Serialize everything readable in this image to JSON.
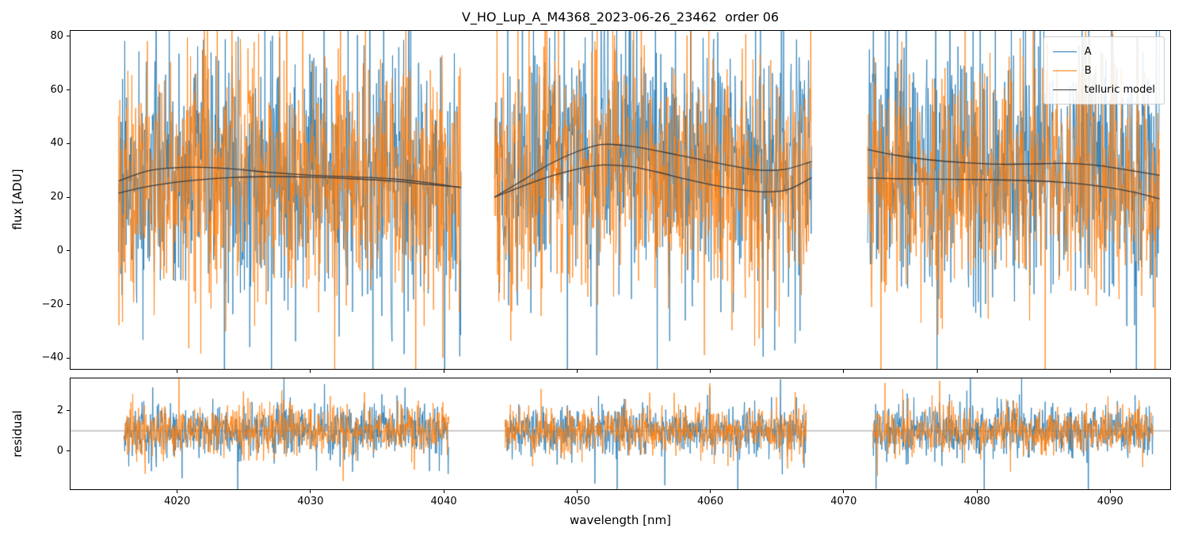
{
  "chart_data": {
    "type": "line",
    "title": "V_HO_Lup_A_M4368_2023-06-26_23462  order 06",
    "xlabel": "wavelength [nm]",
    "xlim": [
      4012,
      4094.5
    ],
    "xticks": [
      4020,
      4030,
      4040,
      4050,
      4060,
      4070,
      4080,
      4090
    ],
    "grid": false,
    "legend_position": "upper right",
    "legend": [
      {
        "label": "A",
        "color": "#1f77b4"
      },
      {
        "label": "B",
        "color": "#ff7f0e"
      },
      {
        "label": "telluric model",
        "color": "#3d3d3d"
      }
    ],
    "panels": [
      {
        "name": "flux",
        "ylabel": "flux [ADU]",
        "ylim": [
          -44,
          82
        ],
        "yticks": [
          -40,
          -20,
          0,
          20,
          40,
          60,
          80
        ],
        "segments": [
          [
            4015.6,
            4041.3
          ],
          [
            4043.8,
            4067.6
          ],
          [
            4071.8,
            4093.7
          ]
        ],
        "noise": {
          "points_per_nm": 30,
          "series": [
            {
              "name": "A",
              "color": "#1f77b4",
              "std": [
                21,
                22,
                24
              ],
              "spike_prob": 0.09,
              "spike_mult": 2.1
            },
            {
              "name": "B",
              "color": "#ff7f0e",
              "std": [
                21,
                22,
                20
              ],
              "spike_prob": 0.09,
              "spike_mult": 2.1
            }
          ]
        },
        "telluric_model": {
          "color": "#3d3d3d",
          "curves": [
            {
              "series": "A",
              "segment": 0,
              "points": [
                [
                  4015.6,
                  26.0
                ],
                [
                  4018,
                  30.0
                ],
                [
                  4021,
                  31.2
                ],
                [
                  4024,
                  30.6
                ],
                [
                  4027,
                  29.2
                ],
                [
                  4030,
                  28.2
                ],
                [
                  4033,
                  27.6
                ],
                [
                  4036,
                  26.9
                ],
                [
                  4038.5,
                  25.6
                ],
                [
                  4041.3,
                  23.6
                ]
              ]
            },
            {
              "series": "B",
              "segment": 0,
              "points": [
                [
                  4015.6,
                  21.5
                ],
                [
                  4018,
                  24.2
                ],
                [
                  4021,
                  26.2
                ],
                [
                  4024,
                  27.3
                ],
                [
                  4027,
                  27.7
                ],
                [
                  4030,
                  27.5
                ],
                [
                  4033,
                  26.9
                ],
                [
                  4036,
                  26.1
                ],
                [
                  4038.5,
                  24.9
                ],
                [
                  4041.3,
                  23.7
                ]
              ]
            },
            {
              "series": "A",
              "segment": 1,
              "points": [
                [
                  4043.8,
                  20.0
                ],
                [
                  4046,
                  26.5
                ],
                [
                  4048,
                  32.5
                ],
                [
                  4050,
                  37.0
                ],
                [
                  4051.8,
                  39.6
                ],
                [
                  4053.5,
                  39.3
                ],
                [
                  4055.5,
                  37.8
                ],
                [
                  4057.5,
                  35.8
                ],
                [
                  4059.5,
                  33.8
                ],
                [
                  4061.5,
                  31.8
                ],
                [
                  4063.5,
                  30.2
                ],
                [
                  4065.5,
                  30.3
                ],
                [
                  4067.6,
                  33.3
                ]
              ]
            },
            {
              "series": "B",
              "segment": 1,
              "points": [
                [
                  4043.8,
                  20.0
                ],
                [
                  4046,
                  24.3
                ],
                [
                  4048,
                  27.8
                ],
                [
                  4050,
                  30.5
                ],
                [
                  4052,
                  32.0
                ],
                [
                  4054,
                  31.4
                ],
                [
                  4056,
                  29.4
                ],
                [
                  4058,
                  26.9
                ],
                [
                  4060,
                  24.7
                ],
                [
                  4062,
                  23.0
                ],
                [
                  4064,
                  22.0
                ],
                [
                  4065.8,
                  22.8
                ],
                [
                  4067.6,
                  27.3
                ]
              ]
            },
            {
              "series": "A",
              "segment": 2,
              "points": [
                [
                  4071.8,
                  37.8
                ],
                [
                  4074,
                  35.6
                ],
                [
                  4076.5,
                  33.9
                ],
                [
                  4079,
                  32.9
                ],
                [
                  4081.5,
                  32.3
                ],
                [
                  4084,
                  32.4
                ],
                [
                  4086.5,
                  32.6
                ],
                [
                  4089,
                  31.9
                ],
                [
                  4091,
                  30.4
                ],
                [
                  4093.7,
                  28.2
                ]
              ]
            },
            {
              "series": "B",
              "segment": 2,
              "points": [
                [
                  4071.8,
                  27.2
                ],
                [
                  4074,
                  26.9
                ],
                [
                  4077,
                  26.7
                ],
                [
                  4080,
                  26.6
                ],
                [
                  4083,
                  26.3
                ],
                [
                  4086,
                  25.7
                ],
                [
                  4088.5,
                  24.6
                ],
                [
                  4090.5,
                  23.1
                ],
                [
                  4092,
                  21.6
                ],
                [
                  4093.7,
                  19.4
                ]
              ]
            }
          ]
        }
      },
      {
        "name": "residual",
        "ylabel": "residual",
        "ylim": [
          -1.9,
          3.6
        ],
        "yticks": [
          0,
          2
        ],
        "hline": 1,
        "hline_color": "#999999",
        "segments": [
          [
            4016.0,
            4040.4
          ],
          [
            4044.6,
            4067.2
          ],
          [
            4072.2,
            4093.2
          ]
        ],
        "noise": {
          "points_per_nm": 30,
          "series": [
            {
              "name": "A",
              "color": "#1f77b4",
              "mean": 1,
              "std": [
                0.6,
                0.55,
                0.65
              ],
              "spike_prob": 0.06,
              "spike_mult": 2.2
            },
            {
              "name": "B",
              "color": "#ff7f0e",
              "mean": 1,
              "std": [
                0.6,
                0.55,
                0.58
              ],
              "spike_prob": 0.06,
              "spike_mult": 2.2
            }
          ]
        }
      }
    ]
  }
}
